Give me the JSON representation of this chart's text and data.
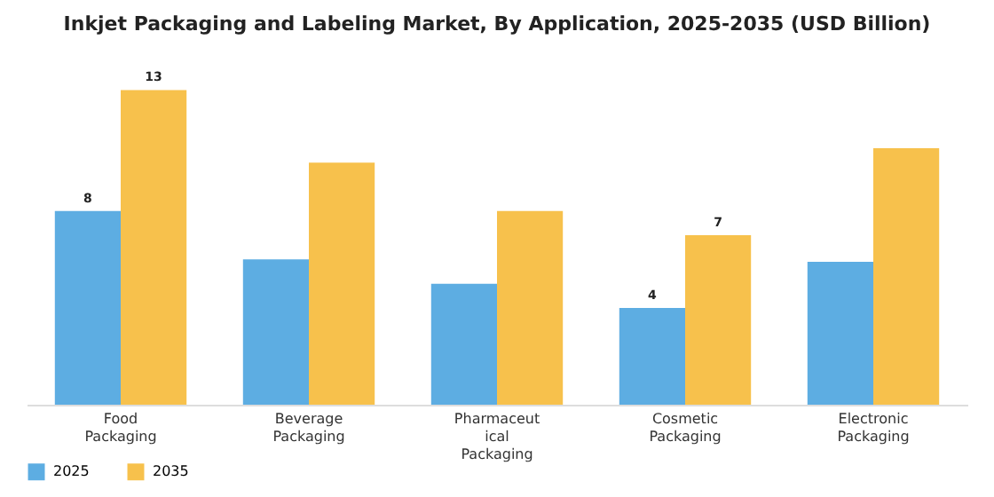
{
  "chart_data": {
    "type": "bar",
    "title": "Inkjet Packaging and Labeling Market, By Application, 2025-2035 (USD Billion)",
    "categories": [
      "Food\nPackaging",
      "Beverage\nPackaging",
      "Pharmaceut\nical\nPackaging",
      "Cosmetic\nPackaging",
      "Electronic\nPackaging"
    ],
    "series": [
      {
        "name": "2025",
        "color": "#5dade2",
        "values": [
          8,
          6,
          5,
          4,
          5.9
        ],
        "value_labels": [
          "8",
          null,
          null,
          "4",
          null
        ]
      },
      {
        "name": "2035",
        "color": "#f7c14c",
        "values": [
          13,
          10,
          8,
          7,
          10.6
        ],
        "value_labels": [
          "13",
          null,
          null,
          "7",
          null
        ]
      }
    ],
    "legend": "bottom",
    "grid": false
  }
}
